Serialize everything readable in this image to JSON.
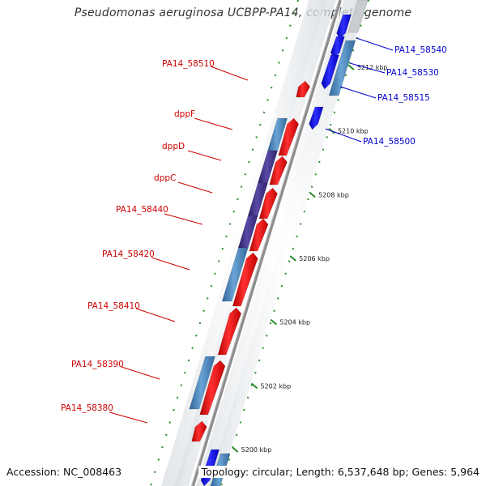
{
  "title": "Pseudomonas aeruginosa UCBPP-PA14, complete genome",
  "footer": {
    "accession": "Accession: NC_008463",
    "info": "Topology: circular; Length: 6,537,648 bp; Genes: 5,964"
  },
  "colors": {
    "forward_cds": "#ff1a1a",
    "reverse_cds": "#1a1aff",
    "gene_blue": "#4a86bf",
    "gene_purple": "#4a3a8c",
    "forward_label": "#cc0000",
    "reverse_label": "#0000cc",
    "tick": "#2a8a2a",
    "backbone": "#8c8c8c"
  },
  "scale_ticks": [
    {
      "value": 5200,
      "label": "5200 kbp"
    },
    {
      "value": 5202,
      "label": "5202 kbp"
    },
    {
      "value": 5204,
      "label": "5204 kbp"
    },
    {
      "value": 5206,
      "label": "5206 kbp"
    },
    {
      "value": 5208,
      "label": "5208 kbp"
    },
    {
      "value": 5210,
      "label": "5210 kbp"
    },
    {
      "value": 5212,
      "label": "5212 kbp"
    }
  ],
  "forward_labels": [
    "PA14_58510",
    "dppF",
    "dppD",
    "dppC",
    "PA14_58440",
    "PA14_58420",
    "PA14_58410",
    "PA14_58390",
    "PA14_58380"
  ],
  "reverse_labels": [
    "PA14_58540",
    "PA14_58530",
    "PA14_58515",
    "PA14_58500"
  ]
}
